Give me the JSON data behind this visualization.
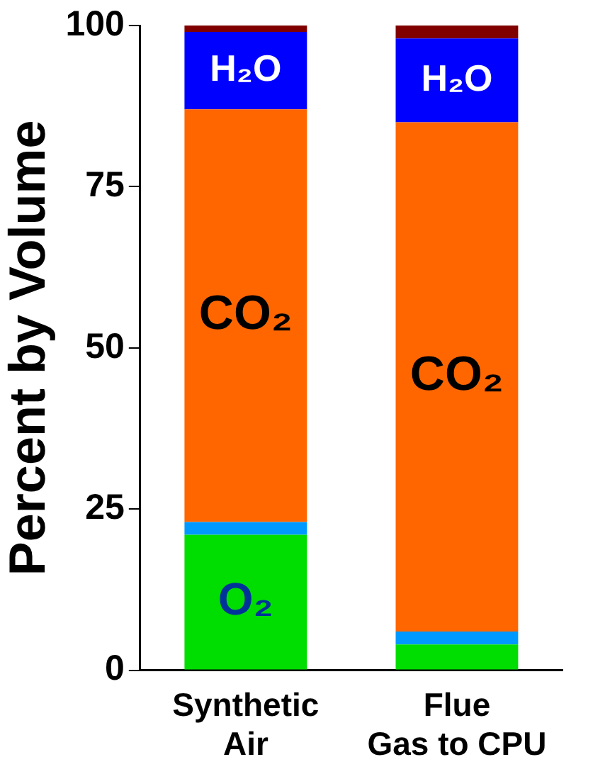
{
  "chart_data": {
    "type": "bar",
    "stacked": true,
    "ylabel": "Percent by Volume",
    "categories": [
      "Synthetic Air",
      "Flue Gas to CPU"
    ],
    "series": [
      {
        "name": "O₂",
        "color": "#00dd00",
        "values": [
          21,
          4
        ]
      },
      {
        "color": "#0099ff",
        "values": [
          2,
          2
        ]
      },
      {
        "name": "CO₂",
        "color": "#ff6600",
        "values": [
          64,
          79
        ]
      },
      {
        "name": "H₂O",
        "color": "#0000ff",
        "values": [
          12,
          13
        ]
      },
      {
        "color": "#800000",
        "values": [
          1,
          2
        ]
      }
    ],
    "ylim": [
      0,
      100
    ],
    "yticks": [
      0,
      25,
      50,
      75,
      100
    ],
    "grid": false,
    "legend": false
  }
}
